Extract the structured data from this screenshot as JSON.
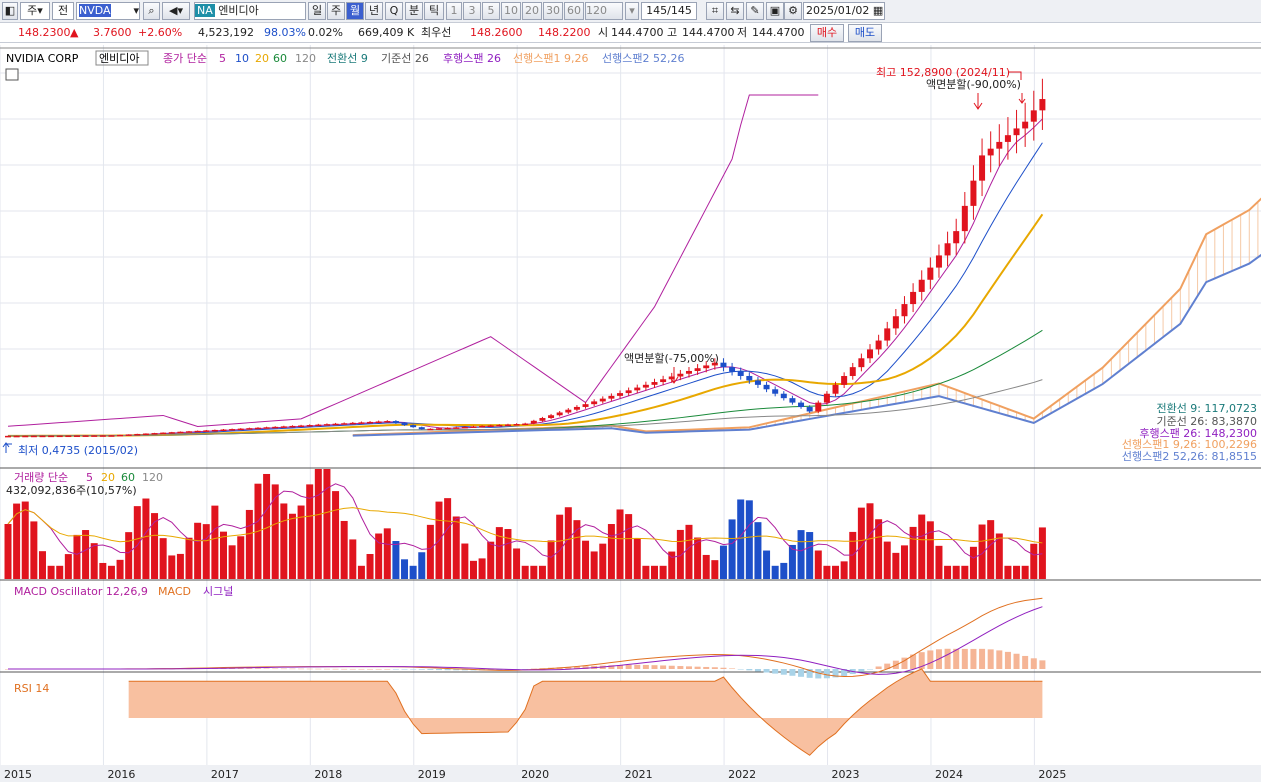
{
  "toolbar": {
    "market": "주",
    "prev_label": "전",
    "ticker": "NVDA",
    "country_badge": "NA",
    "stock_name": "엔비디아",
    "periods": [
      "일",
      "주",
      "월",
      "년"
    ],
    "period_selected": "월",
    "q_label": "Q",
    "minute_label": "분",
    "tick_label": "틱",
    "intervals": [
      "1",
      "3",
      "5",
      "10",
      "20",
      "30",
      "60",
      "120"
    ],
    "count": "145/145",
    "date": "2025/01/02"
  },
  "quote": {
    "price": "148.2300",
    "change_mark": "▲",
    "change": "3.7600",
    "change_pct": "+2.60%",
    "volume": "4,523,192",
    "vol_ratio": "98.03%",
    "turnover": "0.02%",
    "trade_value": "669,409 K",
    "best_label": "최우선",
    "ask": "148.2600",
    "bid": "148.2200",
    "open_label": "시",
    "open": "144.4700",
    "high_label": "고",
    "high": "144.4700",
    "low_label": "저",
    "low": "144.4700",
    "buy_label": "매수",
    "sell_label": "매도"
  },
  "price_legend": {
    "corp": "NVIDIA CORP",
    "name": "엔비디아",
    "ma_label": "종가 단순",
    "ma": [
      "5",
      "10",
      "20",
      "60",
      "120"
    ],
    "ichimoku": [
      "전환선 9",
      "기준선 26",
      "후행스팬 26",
      "선행스팬1 9,26",
      "선행스팬2 52,26"
    ]
  },
  "annotations": {
    "max": "최고 152,8900 (2024/11)",
    "min": "최저 0,4735 (2015/02)",
    "split1": "액면분할(-75,00%)",
    "split2": "액면분할(-90,00%)"
  },
  "ichimoku_values": [
    "전환선 9: 117,0723",
    "기준선 26: 83,3870",
    "후행스팬 26: 148,2300",
    "선행스팬1 9,26: 100,2296",
    "선행스팬2 52,26: 81,8515"
  ],
  "volume_legend": {
    "label": "거래량 단순",
    "ma": [
      "5",
      "20",
      "60",
      "120"
    ],
    "value": "432,092,836주(10,57%)"
  },
  "macd_legend": {
    "osc": "MACD Oscillator 12,26,9",
    "macd": "MACD",
    "signal": "시그널"
  },
  "rsi_legend": {
    "label": "RSI 14"
  },
  "years": [
    "2015",
    "2016",
    "2017",
    "2018",
    "2019",
    "2020",
    "2021",
    "2022",
    "2023",
    "2024",
    "2025"
  ],
  "colors": {
    "up": "#e0141e",
    "down": "#1d4fc9",
    "ma5": "#b0209e",
    "ma10": "#1d4fc9",
    "ma20": "#e8a800",
    "ma60": "#1a8a3a",
    "ma120": "#888888",
    "span1": "#f0a060",
    "span2": "#6080d0",
    "macd": "#e07020",
    "signal": "#9020c0",
    "rsi": "#f0a070"
  },
  "chart_data": {
    "type": "candlestick",
    "start": "2015/01",
    "interval": "month",
    "close_start": 0.5,
    "close_end": 148.23,
    "max": 152.89,
    "min": 0.4735,
    "key_points": [
      [
        "2015/01",
        0.5
      ],
      [
        "2016/01",
        0.75
      ],
      [
        "2018/09",
        7.0
      ],
      [
        "2019/01",
        3.4
      ],
      [
        "2020/01",
        5.9
      ],
      [
        "2021/11",
        32.6
      ],
      [
        "2022/10",
        11.2
      ],
      [
        "2023/06",
        42.3
      ],
      [
        "2024/03",
        90.3
      ],
      [
        "2024/06",
        123.5
      ],
      [
        "2024/11",
        138.3
      ],
      [
        "2025/01",
        148.23
      ]
    ]
  }
}
